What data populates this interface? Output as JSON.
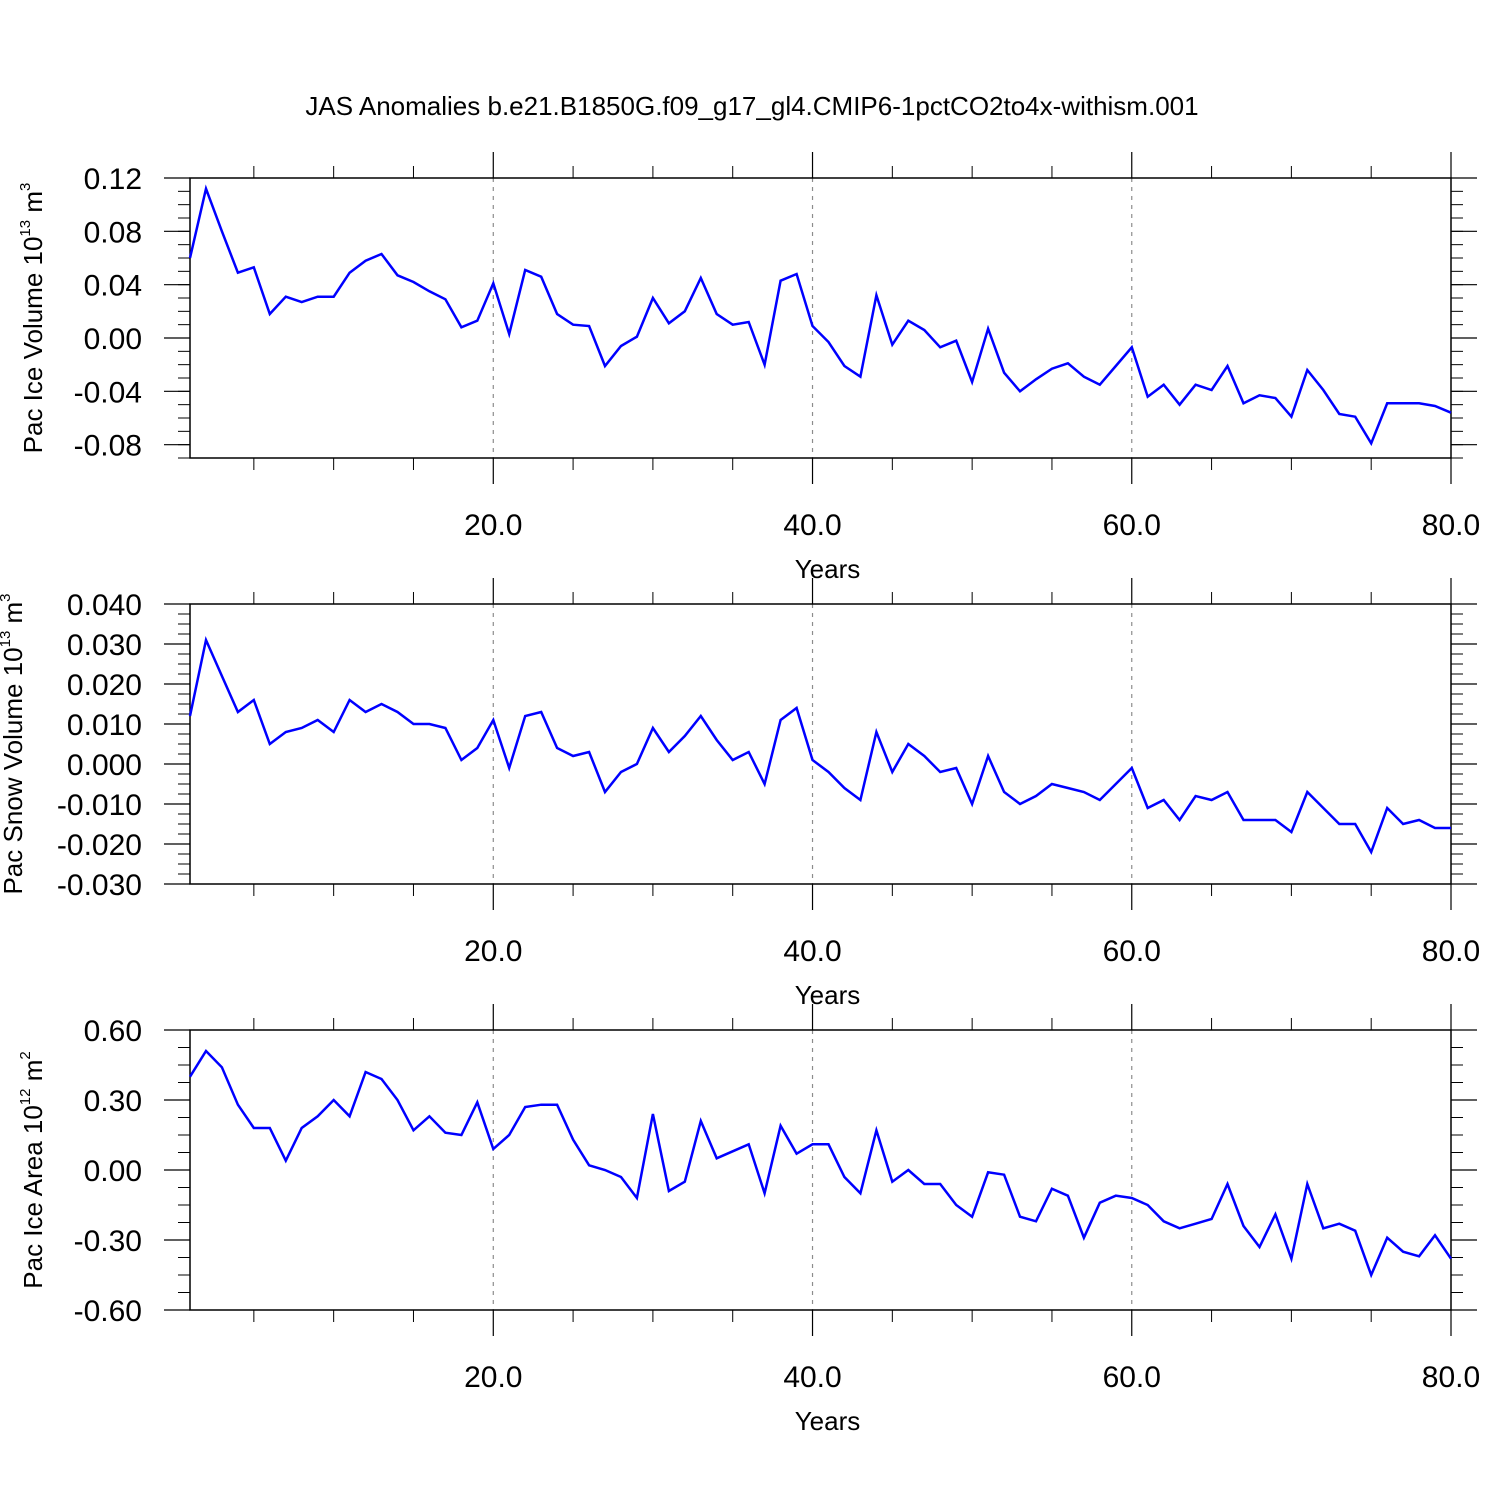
{
  "title": "JAS Anomalies b.e21.B1850G.f09_g17_gl4.CMIP6-1pctCO2to4x-withism.001",
  "colors": {
    "series": "#0000ff",
    "frame": "#000000",
    "grid": "#8c8c8c"
  },
  "chart_data": [
    {
      "type": "line",
      "ylabel": {
        "main": "Pac Ice Volume 10",
        "sup": "13",
        "unit": " m",
        "unit_sup": "3"
      },
      "xlabel": "Years",
      "xlim": [
        1,
        80
      ],
      "ylim": [
        -0.09,
        0.12
      ],
      "xticks": [
        20,
        40,
        60,
        80
      ],
      "xtick_labels": [
        "20.0",
        "40.0",
        "60.0",
        "80.0"
      ],
      "yticks": [
        0.12,
        0.08,
        0.04,
        0.0,
        -0.04,
        -0.08
      ],
      "ytick_labels": [
        "0.12",
        "0.08",
        "0.04",
        "0.00",
        "-0.04",
        "-0.08"
      ],
      "grid_x": [
        20,
        40,
        60
      ],
      "x": [
        1,
        2,
        3,
        4,
        5,
        6,
        7,
        8,
        9,
        10,
        11,
        12,
        13,
        14,
        15,
        16,
        17,
        18,
        19,
        20,
        21,
        22,
        23,
        24,
        25,
        26,
        27,
        28,
        29,
        30,
        31,
        32,
        33,
        34,
        35,
        36,
        37,
        38,
        39,
        40,
        41,
        42,
        43,
        44,
        45,
        46,
        47,
        48,
        49,
        50,
        51,
        52,
        53,
        54,
        55,
        56,
        57,
        58,
        59,
        60,
        61,
        62,
        63,
        64,
        65,
        66,
        67,
        68,
        69,
        70,
        71,
        72,
        73,
        74,
        75,
        76,
        77,
        78,
        79,
        80
      ],
      "values": [
        0.06,
        0.112,
        0.08,
        0.049,
        0.053,
        0.018,
        0.031,
        0.027,
        0.031,
        0.031,
        0.049,
        0.058,
        0.063,
        0.047,
        0.042,
        0.035,
        0.029,
        0.008,
        0.013,
        0.041,
        0.003,
        0.051,
        0.046,
        0.018,
        0.01,
        0.009,
        -0.021,
        -0.006,
        0.001,
        0.03,
        0.011,
        0.02,
        0.045,
        0.018,
        0.01,
        0.012,
        -0.02,
        0.043,
        0.048,
        0.009,
        -0.003,
        -0.021,
        -0.029,
        0.032,
        -0.005,
        0.013,
        0.006,
        -0.007,
        -0.002,
        -0.033,
        0.007,
        -0.026,
        -0.04,
        -0.031,
        -0.023,
        -0.019,
        -0.029,
        -0.035,
        -0.021,
        -0.007,
        -0.044,
        -0.035,
        -0.05,
        -0.035,
        -0.039,
        -0.021,
        -0.049,
        -0.043,
        -0.045,
        -0.059,
        -0.024,
        -0.039,
        -0.057,
        -0.059,
        -0.079,
        -0.049,
        -0.049,
        -0.049,
        -0.051,
        -0.056
      ]
    },
    {
      "type": "line",
      "ylabel": {
        "main": "Pac Snow Volume 10",
        "sup": "13",
        "unit": " m",
        "unit_sup": "3"
      },
      "xlabel": "Years",
      "xlim": [
        1,
        80
      ],
      "ylim": [
        -0.03,
        0.04
      ],
      "xticks": [
        20,
        40,
        60,
        80
      ],
      "xtick_labels": [
        "20.0",
        "40.0",
        "60.0",
        "80.0"
      ],
      "yticks": [
        0.04,
        0.03,
        0.02,
        0.01,
        0.0,
        -0.01,
        -0.02,
        -0.03
      ],
      "ytick_labels": [
        "0.040",
        "0.030",
        "0.020",
        "0.010",
        "0.000",
        "-0.010",
        "-0.020",
        "-0.030"
      ],
      "grid_x": [
        20,
        40,
        60
      ],
      "x": [
        1,
        2,
        3,
        4,
        5,
        6,
        7,
        8,
        9,
        10,
        11,
        12,
        13,
        14,
        15,
        16,
        17,
        18,
        19,
        20,
        21,
        22,
        23,
        24,
        25,
        26,
        27,
        28,
        29,
        30,
        31,
        32,
        33,
        34,
        35,
        36,
        37,
        38,
        39,
        40,
        41,
        42,
        43,
        44,
        45,
        46,
        47,
        48,
        49,
        50,
        51,
        52,
        53,
        54,
        55,
        56,
        57,
        58,
        59,
        60,
        61,
        62,
        63,
        64,
        65,
        66,
        67,
        68,
        69,
        70,
        71,
        72,
        73,
        74,
        75,
        76,
        77,
        78,
        79,
        80
      ],
      "values": [
        0.012,
        0.031,
        0.022,
        0.013,
        0.016,
        0.005,
        0.008,
        0.009,
        0.011,
        0.008,
        0.016,
        0.013,
        0.015,
        0.013,
        0.01,
        0.01,
        0.009,
        0.001,
        0.004,
        0.011,
        -0.001,
        0.012,
        0.013,
        0.004,
        0.002,
        0.003,
        -0.007,
        -0.002,
        0.0,
        0.009,
        0.003,
        0.007,
        0.012,
        0.006,
        0.001,
        0.003,
        -0.005,
        0.011,
        0.014,
        0.001,
        -0.002,
        -0.006,
        -0.009,
        0.008,
        -0.002,
        0.005,
        0.002,
        -0.002,
        -0.001,
        -0.01,
        0.002,
        -0.007,
        -0.01,
        -0.008,
        -0.005,
        -0.006,
        -0.007,
        -0.009,
        -0.005,
        -0.001,
        -0.011,
        -0.009,
        -0.014,
        -0.008,
        -0.009,
        -0.007,
        -0.014,
        -0.014,
        -0.014,
        -0.017,
        -0.007,
        -0.011,
        -0.015,
        -0.015,
        -0.022,
        -0.011,
        -0.015,
        -0.014,
        -0.016,
        -0.016
      ]
    },
    {
      "type": "line",
      "ylabel": {
        "main": "Pac Ice Area 10",
        "sup": "12",
        "unit": " m",
        "unit_sup": "2"
      },
      "xlabel": "Years",
      "xlim": [
        1,
        80
      ],
      "ylim": [
        -0.6,
        0.6
      ],
      "xticks": [
        20,
        40,
        60,
        80
      ],
      "xtick_labels": [
        "20.0",
        "40.0",
        "60.0",
        "80.0"
      ],
      "yticks": [
        0.6,
        0.3,
        0.0,
        -0.3,
        -0.6
      ],
      "ytick_labels": [
        "0.60",
        "0.30",
        "0.00",
        "-0.30",
        "-0.60"
      ],
      "grid_x": [
        20,
        40,
        60
      ],
      "x": [
        1,
        2,
        3,
        4,
        5,
        6,
        7,
        8,
        9,
        10,
        11,
        12,
        13,
        14,
        15,
        16,
        17,
        18,
        19,
        20,
        21,
        22,
        23,
        24,
        25,
        26,
        27,
        28,
        29,
        30,
        31,
        32,
        33,
        34,
        35,
        36,
        37,
        38,
        39,
        40,
        41,
        42,
        43,
        44,
        45,
        46,
        47,
        48,
        49,
        50,
        51,
        52,
        53,
        54,
        55,
        56,
        57,
        58,
        59,
        60,
        61,
        62,
        63,
        64,
        65,
        66,
        67,
        68,
        69,
        70,
        71,
        72,
        73,
        74,
        75,
        76,
        77,
        78,
        79,
        80
      ],
      "values": [
        0.4,
        0.51,
        0.44,
        0.28,
        0.18,
        0.18,
        0.04,
        0.18,
        0.23,
        0.3,
        0.23,
        0.42,
        0.39,
        0.3,
        0.17,
        0.23,
        0.16,
        0.15,
        0.29,
        0.09,
        0.15,
        0.27,
        0.28,
        0.28,
        0.13,
        0.02,
        0.0,
        -0.03,
        -0.12,
        0.24,
        -0.09,
        -0.05,
        0.21,
        0.05,
        0.08,
        0.11,
        -0.1,
        0.19,
        0.07,
        0.11,
        0.11,
        -0.03,
        -0.1,
        0.17,
        -0.05,
        0.0,
        -0.06,
        -0.06,
        -0.15,
        -0.2,
        -0.01,
        -0.02,
        -0.2,
        -0.22,
        -0.08,
        -0.11,
        -0.29,
        -0.14,
        -0.11,
        -0.12,
        -0.15,
        -0.22,
        -0.25,
        -0.23,
        -0.21,
        -0.06,
        -0.24,
        -0.33,
        -0.19,
        -0.38,
        -0.06,
        -0.25,
        -0.23,
        -0.26,
        -0.45,
        -0.29,
        -0.35,
        -0.37,
        -0.28,
        -0.38
      ]
    }
  ]
}
